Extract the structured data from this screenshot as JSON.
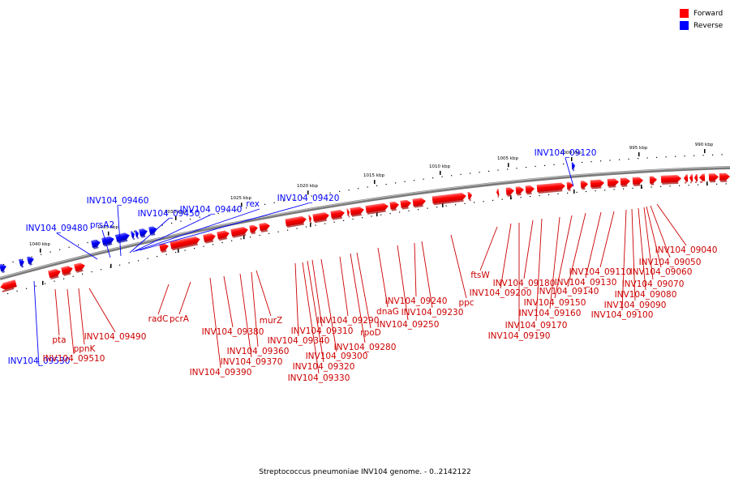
{
  "caption": "Streptococcus pneumoniae INV104 genome. - 0..2142122",
  "legend": [
    {
      "label": "Forward",
      "color": "#ff0000"
    },
    {
      "label": "Reverse",
      "color": "#0000ff"
    }
  ],
  "ticks": [
    "990 kbp",
    "995 kbp",
    "1000 kbp",
    "1005 kbp",
    "1010 kbp",
    "1015 kbp",
    "1020 kbp",
    "1025 kbp",
    "1030 kbp",
    "1035 kbp",
    "1040 kbp"
  ],
  "reverse_labels": [
    "INV104_09120",
    "rex",
    "INV104_09420",
    "INV104_09440",
    "INV104_09450",
    "INV104_09460",
    "prsA2",
    "INV104_09480",
    "INV104_09530"
  ],
  "forward_labels": [
    "INV104_09040",
    "INV104_09050",
    "INV104_09060",
    "INV104_09070",
    "INV104_09080",
    "INV104_09090",
    "INV104_09100",
    "INV104_09110",
    "INV104_09130",
    "INV104_09140",
    "INV104_09150",
    "INV104_09160",
    "INV104_09170",
    "INV104_09180",
    "INV104_09190",
    "INV104_09200",
    "ftsW",
    "ppc",
    "INV104_09230",
    "INV104_09240",
    "INV104_09250",
    "dnaG",
    "rpoD",
    "INV104_09280",
    "INV104_09290",
    "INV104_09300",
    "INV104_09310",
    "INV104_09320",
    "INV104_09330",
    "INV104_09340",
    "murZ",
    "INV104_09360",
    "INV104_09370",
    "INV104_09380",
    "INV104_09390",
    "pcrA",
    "radC",
    "INV104_09490",
    "ppnK",
    "INV104_09510",
    "pta"
  ]
}
